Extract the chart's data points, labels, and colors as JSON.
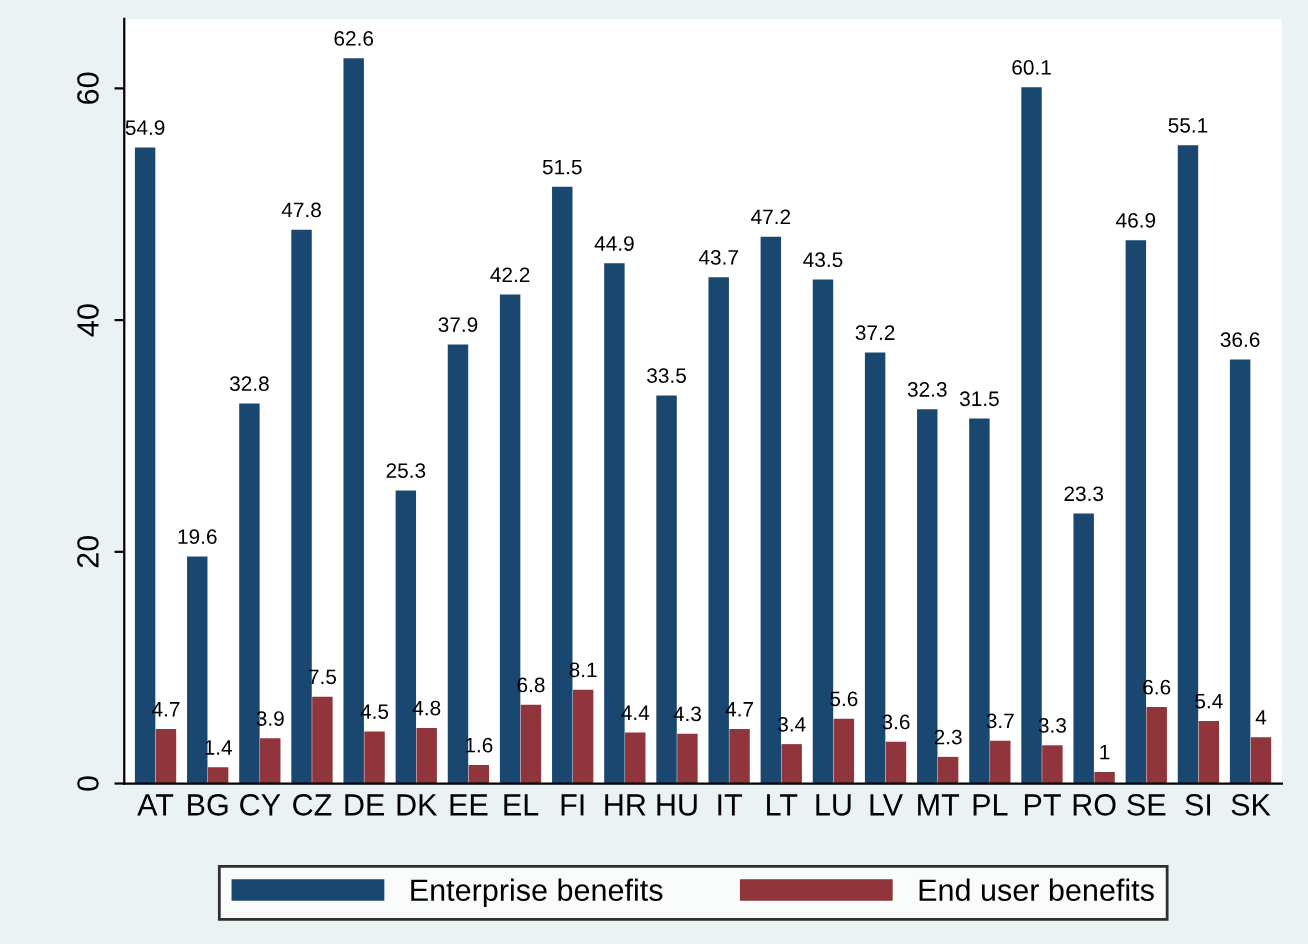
{
  "chart_data": {
    "type": "bar",
    "categories": [
      "AT",
      "BG",
      "CY",
      "CZ",
      "DE",
      "DK",
      "EE",
      "EL",
      "FI",
      "HR",
      "HU",
      "IT",
      "LT",
      "LU",
      "LV",
      "MT",
      "PL",
      "PT",
      "RO",
      "SE",
      "SI",
      "SK"
    ],
    "series": [
      {
        "name": "Enterprise benefits",
        "color": "#1a476f",
        "values": [
          54.9,
          19.6,
          32.8,
          47.8,
          62.6,
          25.3,
          37.9,
          42.2,
          51.5,
          44.9,
          33.5,
          43.7,
          47.2,
          43.5,
          37.2,
          32.3,
          31.5,
          60.1,
          23.3,
          46.9,
          55.1,
          36.6
        ]
      },
      {
        "name": "End user benefits",
        "color": "#90353b",
        "values": [
          4.7,
          1.4,
          3.9,
          7.5,
          4.5,
          4.8,
          1.6,
          6.8,
          8.1,
          4.4,
          4.3,
          4.7,
          3.4,
          5.6,
          3.6,
          2.3,
          3.7,
          3.3,
          1,
          6.6,
          5.4,
          4
        ]
      }
    ],
    "ylim": [
      0,
      66
    ],
    "yticks": [
      0,
      20,
      40,
      60
    ],
    "data_labels": true,
    "legend": "bottom",
    "grid": false
  }
}
